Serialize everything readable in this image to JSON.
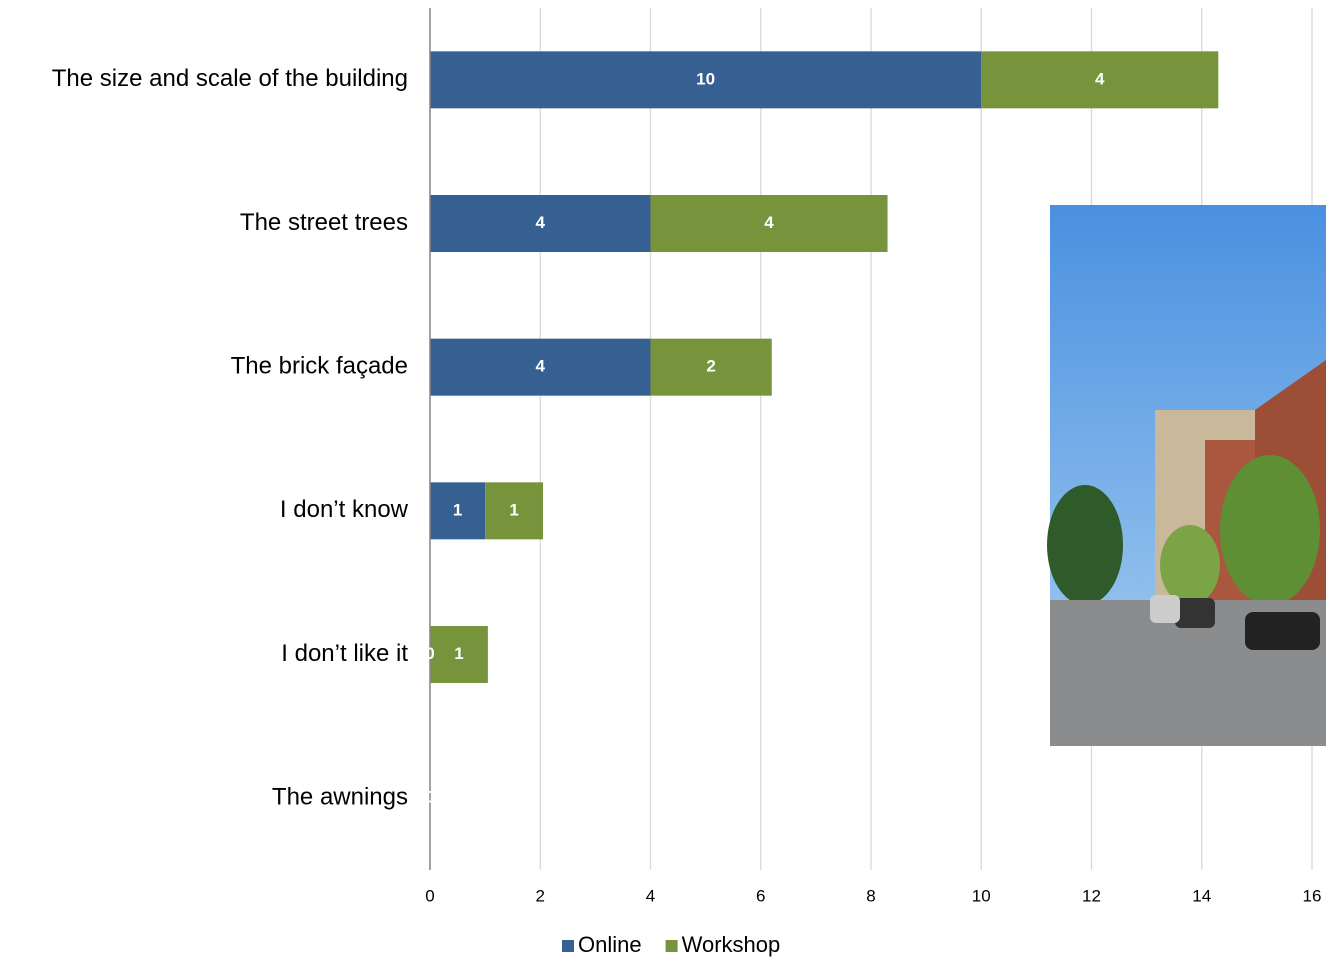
{
  "chart_data": {
    "type": "stacked-bar-horizontal",
    "categories": [
      "The size and scale of the building",
      "The street trees",
      "The brick façade",
      "I don’t know",
      "I don’t like it",
      "The awnings"
    ],
    "series": [
      {
        "name": "Online",
        "color": "#376092",
        "values": [
          10,
          4,
          4,
          1,
          0,
          0
        ],
        "value_labels": [
          "10",
          "4",
          "4",
          "1",
          "0",
          "0"
        ]
      },
      {
        "name": "Workshop",
        "color": "#77933c",
        "values": [
          4.3,
          4.3,
          2.2,
          1.05,
          1.05,
          0
        ],
        "value_labels": [
          "4",
          "4",
          "2",
          "1",
          "1",
          "0"
        ]
      }
    ],
    "xlim": [
      0,
      16
    ],
    "xticks": [
      0,
      2,
      4,
      6,
      8,
      10,
      12,
      14,
      16
    ],
    "grid": true,
    "legend": "bottom"
  }
}
